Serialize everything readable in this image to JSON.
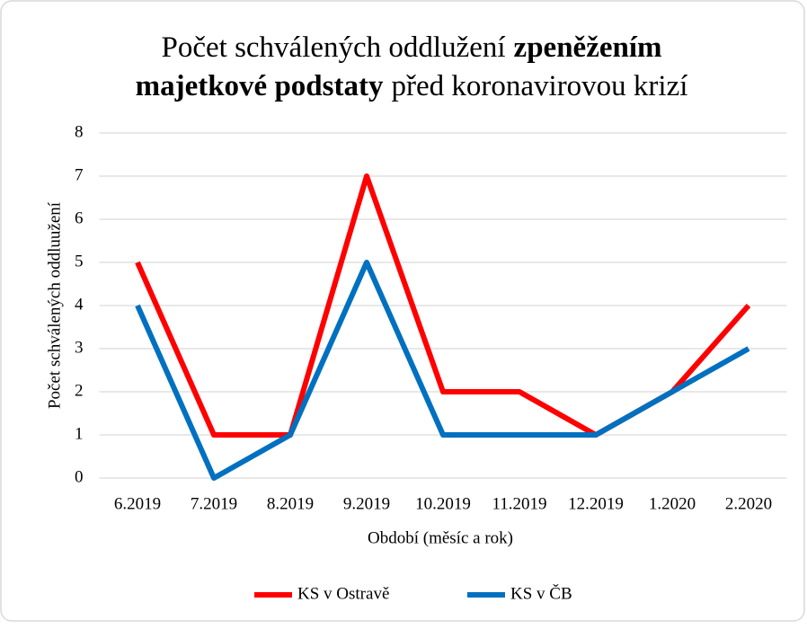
{
  "chart_data": {
    "type": "line",
    "title_lines": [
      [
        {
          "text": "Počet schválených oddlužení",
          "bold": false
        },
        {
          "text": "zpeněžením",
          "bold": true
        }
      ],
      [
        {
          "text": "majetkové podstaty",
          "bold": true
        },
        {
          "text": "před koronavirovou krizí",
          "bold": false
        }
      ]
    ],
    "x_label": "Období (měsíc a rok)",
    "y_label": "Počet schválených oddluužení",
    "categories": [
      "6.2019",
      "7.2019",
      "8.2019",
      "9.2019",
      "10.2019",
      "11.2019",
      "12.2019",
      "1.2020",
      "2.2020"
    ],
    "series": [
      {
        "name": "KS v Ostravě",
        "color": "#ff0000",
        "values": [
          5,
          1,
          1,
          7,
          2,
          2,
          1,
          2,
          4
        ]
      },
      {
        "name": "KS v ČB",
        "color": "#0070c0",
        "values": [
          4,
          0,
          1,
          5,
          1,
          1,
          1,
          2,
          3
        ]
      }
    ],
    "ylim": [
      0,
      8
    ],
    "yticks": [
      0,
      1,
      2,
      3,
      4,
      5,
      6,
      7,
      8
    ],
    "grid": true,
    "legend": "bottom"
  }
}
